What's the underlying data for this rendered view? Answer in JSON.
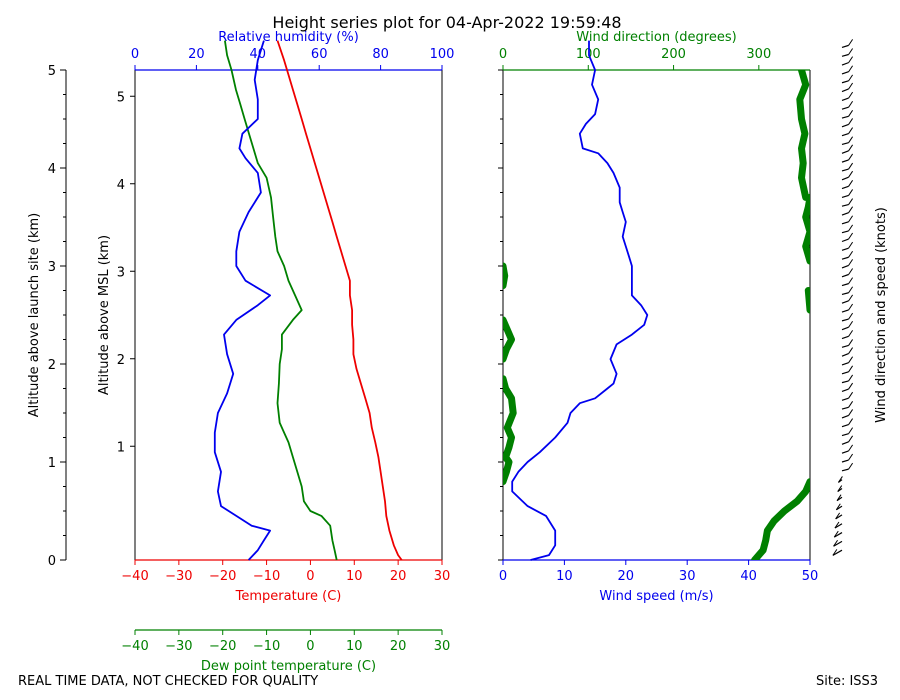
{
  "title": "Height series plot for 04-Apr-2022 19:59:48",
  "footer_left": "REAL TIME DATA, NOT CHECKED FOR QUALITY",
  "footer_right": "Site: ISS3",
  "colors": {
    "red": "#ee0000",
    "green": "#008000",
    "blue": "#0000ee",
    "black": "#000000"
  },
  "chart_data": [
    {
      "type": "line",
      "panel": "left",
      "axes": {
        "left_outer": {
          "label": "Altitude above launch site (km)",
          "range": [
            0,
            5
          ],
          "ticks": [
            0,
            1,
            2,
            3,
            4,
            5
          ]
        },
        "left_inner": {
          "label": "Altitude above MSL (km)",
          "range": [
            -0.3,
            5.3
          ],
          "ticks": [
            1,
            2,
            3,
            4,
            5
          ],
          "tick_labels": [
            "1",
            "2",
            "3",
            "4",
            "5"
          ]
        },
        "bottom": {
          "label": "Temperature (C)",
          "range": [
            -40,
            30
          ],
          "ticks": [
            -40,
            -30,
            -20,
            -10,
            0,
            10,
            20,
            30
          ],
          "color": "red"
        },
        "bottom2": {
          "label": "Dew point temperature (C)",
          "range": [
            -40,
            30
          ],
          "ticks": [
            -40,
            -30,
            -20,
            -10,
            0,
            10,
            20,
            30
          ],
          "color": "green"
        },
        "top": {
          "label": "Relative humidity (%)",
          "range": [
            0,
            100
          ],
          "ticks": [
            0,
            20,
            40,
            60,
            80,
            100
          ],
          "color": "blue"
        }
      },
      "series": [
        {
          "name": "Temperature",
          "axis": "bottom",
          "color": "red",
          "points": [
            [
              20.8,
              0.0
            ],
            [
              20.0,
              0.05
            ],
            [
              19.0,
              0.15
            ],
            [
              18.0,
              0.3
            ],
            [
              17.3,
              0.45
            ],
            [
              17.0,
              0.6
            ],
            [
              16.5,
              0.75
            ],
            [
              16.0,
              0.9
            ],
            [
              15.5,
              1.05
            ],
            [
              14.8,
              1.2
            ],
            [
              14.0,
              1.35
            ],
            [
              13.5,
              1.5
            ],
            [
              12.5,
              1.65
            ],
            [
              11.5,
              1.8
            ],
            [
              10.5,
              1.95
            ],
            [
              9.8,
              2.1
            ],
            [
              9.8,
              2.25
            ],
            [
              9.5,
              2.4
            ],
            [
              9.5,
              2.55
            ],
            [
              9.0,
              2.7
            ],
            [
              9.0,
              2.85
            ],
            [
              8.0,
              3.0
            ],
            [
              7.0,
              3.15
            ],
            [
              6.0,
              3.3
            ],
            [
              5.0,
              3.45
            ],
            [
              4.0,
              3.6
            ],
            [
              3.0,
              3.75
            ],
            [
              2.0,
              3.9
            ],
            [
              1.0,
              4.05
            ],
            [
              0.0,
              4.2
            ],
            [
              -1.0,
              4.35
            ],
            [
              -2.0,
              4.5
            ],
            [
              -3.0,
              4.65
            ],
            [
              -4.0,
              4.8
            ],
            [
              -5.0,
              4.95
            ],
            [
              -6.0,
              5.1
            ],
            [
              -7.5,
              5.3
            ]
          ]
        },
        {
          "name": "Dew point temperature",
          "axis": "bottom2",
          "color": "green",
          "points": [
            [
              6.0,
              0.0
            ],
            [
              5.5,
              0.1
            ],
            [
              5.0,
              0.2
            ],
            [
              4.5,
              0.35
            ],
            [
              2.5,
              0.45
            ],
            [
              0.0,
              0.5
            ],
            [
              -1.5,
              0.6
            ],
            [
              -2.0,
              0.75
            ],
            [
              -3.0,
              0.9
            ],
            [
              -4.0,
              1.05
            ],
            [
              -5.0,
              1.2
            ],
            [
              -6.0,
              1.3
            ],
            [
              -7.0,
              1.4
            ],
            [
              -7.5,
              1.6
            ],
            [
              -7.2,
              1.8
            ],
            [
              -7.0,
              2.0
            ],
            [
              -6.5,
              2.15
            ],
            [
              -6.5,
              2.3
            ],
            [
              -4.0,
              2.45
            ],
            [
              -2.0,
              2.55
            ],
            [
              -3.5,
              2.7
            ],
            [
              -5.0,
              2.85
            ],
            [
              -6.0,
              3.0
            ],
            [
              -7.5,
              3.15
            ],
            [
              -8.0,
              3.3
            ],
            [
              -8.5,
              3.5
            ],
            [
              -9.0,
              3.7
            ],
            [
              -10.0,
              3.9
            ],
            [
              -12.0,
              4.05
            ],
            [
              -13.0,
              4.2
            ],
            [
              -14.0,
              4.35
            ],
            [
              -15.0,
              4.5
            ],
            [
              -16.0,
              4.65
            ],
            [
              -17.0,
              4.8
            ],
            [
              -18.0,
              5.0
            ],
            [
              -19.0,
              5.15
            ],
            [
              -19.5,
              5.3
            ]
          ]
        },
        {
          "name": "Relative humidity",
          "axis": "top",
          "color": "blue",
          "points": [
            [
              37,
              0.0
            ],
            [
              40,
              0.1
            ],
            [
              42,
              0.2
            ],
            [
              44,
              0.3
            ],
            [
              38,
              0.35
            ],
            [
              33,
              0.45
            ],
            [
              28,
              0.55
            ],
            [
              27,
              0.7
            ],
            [
              28,
              0.9
            ],
            [
              26,
              1.1
            ],
            [
              26,
              1.3
            ],
            [
              27,
              1.5
            ],
            [
              30,
              1.7
            ],
            [
              32,
              1.9
            ],
            [
              30,
              2.1
            ],
            [
              29,
              2.3
            ],
            [
              33,
              2.45
            ],
            [
              40,
              2.6
            ],
            [
              44,
              2.7
            ],
            [
              36,
              2.85
            ],
            [
              33,
              3.0
            ],
            [
              33,
              3.15
            ],
            [
              34,
              3.35
            ],
            [
              37,
              3.55
            ],
            [
              41,
              3.75
            ],
            [
              40,
              3.95
            ],
            [
              36,
              4.1
            ],
            [
              34,
              4.2
            ],
            [
              35,
              4.35
            ],
            [
              40,
              4.5
            ],
            [
              40,
              4.7
            ],
            [
              39,
              4.9
            ],
            [
              40,
              5.1
            ],
            [
              42,
              5.3
            ]
          ]
        }
      ]
    },
    {
      "type": "line",
      "panel": "right",
      "axes": {
        "left": {
          "range": [
            0,
            5
          ],
          "ticks": [
            0,
            1,
            2,
            3,
            4,
            5
          ]
        },
        "bottom": {
          "label": "Wind speed (m/s)",
          "range": [
            0,
            50
          ],
          "ticks": [
            0,
            10,
            20,
            30,
            40,
            50
          ],
          "color": "blue"
        },
        "top": {
          "label": "Wind direction (degrees)",
          "range": [
            0,
            360
          ],
          "ticks": [
            0,
            100,
            200,
            300
          ],
          "color": "green"
        },
        "right": {
          "label": "Wind direction and speed (knots)"
        }
      },
      "series": [
        {
          "name": "Wind speed",
          "axis": "bottom",
          "color": "blue",
          "points": [
            [
              4.5,
              0.0
            ],
            [
              7.5,
              0.05
            ],
            [
              8.5,
              0.15
            ],
            [
              8.5,
              0.3
            ],
            [
              7.0,
              0.45
            ],
            [
              4.0,
              0.55
            ],
            [
              1.5,
              0.7
            ],
            [
              1.5,
              0.8
            ],
            [
              2.5,
              0.9
            ],
            [
              4.0,
              1.0
            ],
            [
              6.0,
              1.1
            ],
            [
              8.5,
              1.25
            ],
            [
              10.5,
              1.4
            ],
            [
              11.0,
              1.5
            ],
            [
              12.5,
              1.6
            ],
            [
              15.0,
              1.65
            ],
            [
              17.0,
              1.75
            ],
            [
              18.0,
              1.8
            ],
            [
              18.5,
              1.9
            ],
            [
              17.5,
              2.05
            ],
            [
              18.5,
              2.2
            ],
            [
              21.0,
              2.3
            ],
            [
              23.0,
              2.4
            ],
            [
              23.5,
              2.5
            ],
            [
              22.5,
              2.6
            ],
            [
              21.0,
              2.7
            ],
            [
              21.0,
              2.85
            ],
            [
              21.0,
              3.0
            ],
            [
              20.5,
              3.1
            ],
            [
              20.0,
              3.2
            ],
            [
              19.5,
              3.3
            ],
            [
              20.0,
              3.45
            ],
            [
              19.5,
              3.55
            ],
            [
              19.0,
              3.65
            ],
            [
              19.0,
              3.8
            ],
            [
              18.0,
              3.95
            ],
            [
              17.0,
              4.05
            ],
            [
              15.5,
              4.15
            ],
            [
              13.0,
              4.2
            ],
            [
              12.5,
              4.35
            ],
            [
              13.5,
              4.45
            ],
            [
              15.0,
              4.55
            ],
            [
              15.5,
              4.7
            ],
            [
              14.5,
              4.85
            ],
            [
              15.0,
              5.0
            ],
            [
              14.0,
              5.15
            ],
            [
              14.0,
              5.3
            ]
          ]
        },
        {
          "name": "Wind direction",
          "axis": "top",
          "color": "green",
          "segments": [
            [
              [
                295,
                0.0
              ],
              [
                305,
                0.1
              ],
              [
                308,
                0.2
              ],
              [
                310,
                0.3
              ],
              [
                318,
                0.4
              ],
              [
                330,
                0.5
              ],
              [
                345,
                0.6
              ],
              [
                355,
                0.7
              ],
              [
                360,
                0.8
              ]
            ],
            [
              [
                0,
                0.8
              ],
              [
                4,
                0.9
              ],
              [
                7,
                1.0
              ],
              [
                3,
                1.05
              ],
              [
                7,
                1.15
              ],
              [
                10,
                1.25
              ],
              [
                5,
                1.35
              ],
              [
                12,
                1.5
              ],
              [
                10,
                1.65
              ],
              [
                3,
                1.75
              ],
              [
                0,
                1.85
              ]
            ],
            [
              [
                0,
                2.05
              ],
              [
                4,
                2.15
              ],
              [
                10,
                2.25
              ],
              [
                5,
                2.35
              ],
              [
                0,
                2.45
              ]
            ],
            [
              [
                0,
                2.8
              ],
              [
                2,
                2.9
              ],
              [
                0,
                3.0
              ]
            ],
            [
              [
                360,
                2.55
              ],
              [
                358,
                2.75
              ]
            ],
            [
              [
                360,
                3.05
              ],
              [
                355,
                3.2
              ],
              [
                360,
                3.35
              ],
              [
                355,
                3.5
              ],
              [
                358,
                3.6
              ],
              [
                360,
                3.7
              ]
            ],
            [
              [
                355,
                3.7
              ],
              [
                350,
                3.9
              ],
              [
                352,
                4.05
              ],
              [
                350,
                4.2
              ],
              [
                354,
                4.35
              ],
              [
                350,
                4.5
              ],
              [
                348,
                4.7
              ],
              [
                355,
                4.85
              ],
              [
                350,
                5.0
              ],
              [
                345,
                5.15
              ],
              [
                342,
                5.3
              ]
            ]
          ]
        }
      ],
      "barbs_note": "wind barbs along right margin"
    }
  ]
}
